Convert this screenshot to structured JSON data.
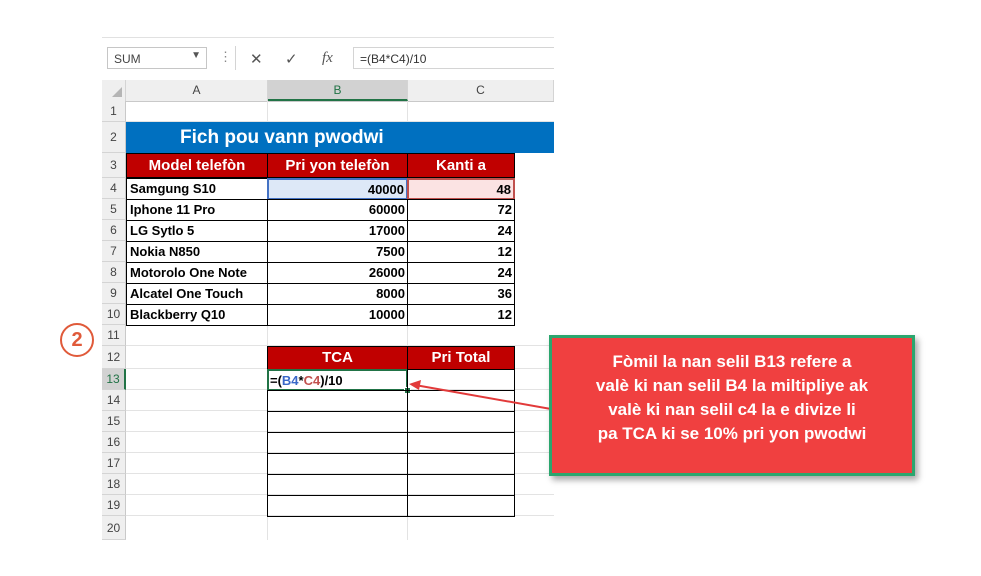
{
  "formula_bar": {
    "name_box": "SUM",
    "cancel_icon": "✕",
    "enter_icon": "✓",
    "fx_label": "fx",
    "formula": "=(B4*C4)/10"
  },
  "columns": [
    "A",
    "B",
    "C"
  ],
  "rows": [
    "1",
    "2",
    "3",
    "4",
    "5",
    "6",
    "7",
    "8",
    "9",
    "10",
    "11",
    "12",
    "13",
    "14",
    "15",
    "16",
    "17",
    "18",
    "19",
    "20"
  ],
  "sheet": {
    "title": "Fich pou vann pwodwi",
    "headers": [
      "Model telefòn",
      "Pri yon telefòn",
      "Kanti a"
    ],
    "data": [
      {
        "model": "Samgung S10",
        "price": "40000",
        "qty": "48"
      },
      {
        "model": "Iphone 11 Pro",
        "price": "60000",
        "qty": "72"
      },
      {
        "model": "LG Sytlo 5",
        "price": "17000",
        "qty": "24"
      },
      {
        "model": "Nokia N850",
        "price": "7500",
        "qty": "12"
      },
      {
        "model": "Motorolo One Note",
        "price": "26000",
        "qty": "24"
      },
      {
        "model": "Alcatel One Touch",
        "price": "8000",
        "qty": "36"
      },
      {
        "model": "Blackberry Q10",
        "price": "10000",
        "qty": "12"
      }
    ],
    "tca_header": "TCA",
    "total_header": "Pri Total",
    "formula_parts": {
      "p1": "=(",
      "ref1": "B4",
      "op": "*",
      "ref2": "C4",
      "p2": ")/10"
    }
  },
  "annotation": {
    "step_number": "2",
    "callout_lines": [
      "Fòmil la nan selil B13 refere a",
      "valè ki nan selil B4 la miltipliye ak",
      "valè ki nan selil c4 la e divize li",
      "pa TCA ki se 10% pri yon pwodwi"
    ],
    "colors": {
      "callout_bg": "#f04040",
      "callout_border": "#2ba66e",
      "title_bg": "#0070c0",
      "header_bg": "#c00000",
      "badge": "#e05a3a"
    }
  }
}
